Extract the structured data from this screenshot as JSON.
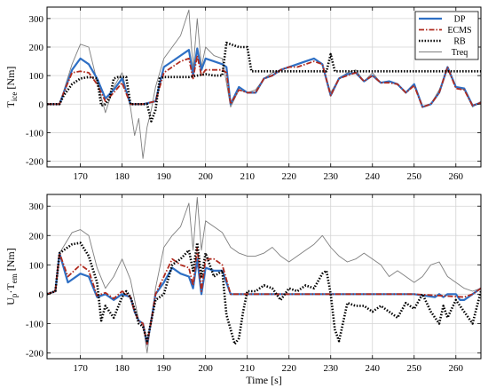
{
  "chart_data": [
    {
      "type": "line",
      "ylabel_main": "T",
      "ylabel_sub": "ice",
      "ylabel_unit": " [Nm]",
      "xlabel": "",
      "xlim": [
        162,
        266
      ],
      "ylim": [
        -220,
        340
      ],
      "xticks": [
        170,
        180,
        190,
        200,
        210,
        220,
        230,
        240,
        250,
        260
      ],
      "yticks": [
        -200,
        -100,
        0,
        100,
        200,
        300
      ],
      "grid": true,
      "legend": "top-right",
      "series": [
        {
          "name": "Treq",
          "color": "#7f7f7f",
          "x": [
            162,
            165,
            168,
            170,
            172,
            174,
            176,
            178,
            180,
            182,
            183,
            184,
            185,
            186,
            187,
            188,
            189,
            190,
            192,
            194,
            196,
            197,
            198,
            199,
            200,
            202,
            204,
            206,
            208,
            210,
            212,
            214,
            216,
            218,
            220,
            222,
            224,
            226,
            228,
            230,
            232,
            234,
            236,
            238,
            240,
            242,
            244,
            246,
            248,
            250,
            252,
            254,
            256,
            258,
            260,
            262,
            264,
            266
          ],
          "y": [
            0,
            0,
            140,
            210,
            200,
            80,
            -30,
            60,
            110,
            -10,
            -110,
            -50,
            -190,
            -80,
            -20,
            60,
            110,
            160,
            200,
            240,
            330,
            120,
            300,
            130,
            200,
            170,
            160,
            -10,
            50,
            40,
            50,
            90,
            110,
            120,
            130,
            140,
            150,
            160,
            140,
            40,
            90,
            110,
            120,
            80,
            110,
            75,
            80,
            70,
            40,
            70,
            -10,
            0,
            50,
            120,
            60,
            50,
            -10,
            10
          ]
        },
        {
          "name": "DP",
          "color": "#2e6fc4",
          "x": [
            162,
            165,
            166,
            168,
            170,
            172,
            174,
            176,
            178,
            180,
            182,
            185,
            188,
            190,
            192,
            194,
            196,
            197,
            198,
            199,
            200,
            202,
            204,
            205,
            206,
            208,
            210,
            212,
            214,
            216,
            218,
            220,
            222,
            224,
            226,
            228,
            230,
            232,
            234,
            236,
            238,
            240,
            242,
            244,
            246,
            248,
            250,
            252,
            254,
            256,
            258,
            260,
            262,
            264,
            266
          ],
          "y": [
            0,
            0,
            40,
            120,
            160,
            140,
            90,
            20,
            50,
            90,
            0,
            0,
            10,
            130,
            150,
            170,
            190,
            100,
            195,
            120,
            160,
            150,
            140,
            130,
            0,
            60,
            40,
            40,
            90,
            100,
            120,
            130,
            140,
            150,
            160,
            140,
            30,
            90,
            105,
            110,
            80,
            100,
            75,
            80,
            70,
            40,
            70,
            -10,
            0,
            40,
            130,
            60,
            55,
            -5,
            5
          ]
        },
        {
          "name": "ECMS",
          "color": "#b02a1e",
          "x": [
            162,
            165,
            166,
            168,
            170,
            172,
            174,
            176,
            178,
            180,
            182,
            185,
            188,
            190,
            192,
            194,
            196,
            197,
            198,
            199,
            200,
            202,
            204,
            205,
            206,
            208,
            210,
            212,
            214,
            216,
            218,
            220,
            222,
            224,
            226,
            228,
            230,
            232,
            234,
            236,
            238,
            240,
            242,
            244,
            246,
            248,
            250,
            252,
            254,
            256,
            258,
            260,
            262,
            264,
            266
          ],
          "y": [
            0,
            0,
            40,
            110,
            115,
            110,
            70,
            10,
            40,
            75,
            0,
            0,
            10,
            110,
            130,
            150,
            160,
            90,
            170,
            100,
            120,
            120,
            120,
            110,
            0,
            50,
            40,
            40,
            90,
            100,
            120,
            130,
            130,
            140,
            150,
            140,
            30,
            90,
            100,
            110,
            80,
            100,
            75,
            75,
            70,
            40,
            65,
            -10,
            0,
            40,
            130,
            55,
            50,
            -5,
            5
          ]
        },
        {
          "name": "RB",
          "color": "#000000",
          "x": [
            162,
            165,
            166,
            168,
            170,
            172,
            174,
            175,
            176,
            177,
            178,
            179,
            180,
            181,
            182,
            184,
            186,
            187,
            188,
            189,
            190,
            192,
            194,
            196,
            198,
            200,
            202,
            204,
            205,
            206,
            208,
            210,
            211,
            212,
            216,
            220,
            224,
            228,
            229,
            230,
            231,
            232,
            236,
            240,
            244,
            248,
            252,
            256,
            260,
            262,
            264,
            266
          ],
          "y": [
            0,
            0,
            30,
            70,
            90,
            95,
            90,
            -5,
            0,
            20,
            90,
            95,
            95,
            95,
            0,
            0,
            0,
            -60,
            -20,
            90,
            95,
            95,
            95,
            95,
            100,
            105,
            100,
            100,
            215,
            210,
            200,
            200,
            115,
            115,
            115,
            115,
            115,
            115,
            115,
            175,
            115,
            115,
            115,
            115,
            115,
            115,
            115,
            115,
            115,
            115,
            115,
            115
          ]
        }
      ]
    },
    {
      "type": "line",
      "ylabel_main": "U",
      "ylabel_sub": "p",
      "ylabel_mid": "·T",
      "ylabel_sub2": "em",
      "ylabel_unit": " [Nm]",
      "xlabel": "Time [s]",
      "xlim": [
        162,
        266
      ],
      "ylim": [
        -220,
        340
      ],
      "xticks": [
        170,
        180,
        190,
        200,
        210,
        220,
        230,
        240,
        250,
        260
      ],
      "yticks": [
        -200,
        -100,
        0,
        100,
        200,
        300
      ],
      "grid": true,
      "series": [
        {
          "name": "Treq",
          "color": "#7f7f7f",
          "x": [
            162,
            164,
            165,
            168,
            170,
            172,
            174,
            176,
            178,
            180,
            182,
            183,
            184,
            185,
            186,
            187,
            188,
            190,
            192,
            194,
            196,
            197,
            198,
            199,
            200,
            202,
            204,
            206,
            208,
            210,
            212,
            214,
            216,
            218,
            220,
            222,
            224,
            226,
            228,
            230,
            232,
            234,
            236,
            238,
            240,
            242,
            244,
            246,
            248,
            250,
            252,
            254,
            256,
            258,
            260,
            262,
            264,
            266
          ],
          "y": [
            0,
            10,
            140,
            210,
            220,
            200,
            90,
            20,
            60,
            120,
            50,
            -20,
            -90,
            -100,
            -200,
            -90,
            20,
            160,
            200,
            230,
            310,
            150,
            330,
            150,
            250,
            230,
            210,
            160,
            140,
            130,
            130,
            140,
            160,
            130,
            110,
            130,
            150,
            170,
            200,
            160,
            130,
            110,
            120,
            140,
            120,
            100,
            60,
            80,
            60,
            40,
            60,
            100,
            110,
            60,
            40,
            20,
            10,
            20
          ]
        },
        {
          "name": "DP",
          "color": "#2e6fc4",
          "x": [
            162,
            164,
            165,
            167,
            170,
            172,
            174,
            176,
            178,
            180,
            182,
            183,
            184,
            185,
            186,
            187,
            188,
            190,
            192,
            194,
            196,
            197,
            198,
            199,
            200,
            202,
            204,
            206,
            208,
            230,
            250,
            255,
            256,
            257,
            258,
            260,
            261,
            262,
            264,
            266
          ],
          "y": [
            0,
            10,
            140,
            40,
            70,
            60,
            -10,
            0,
            -20,
            0,
            -10,
            -60,
            -90,
            -100,
            -170,
            -90,
            0,
            40,
            90,
            70,
            60,
            20,
            120,
            0,
            90,
            80,
            80,
            0,
            0,
            0,
            0,
            -10,
            0,
            -10,
            0,
            0,
            -20,
            -20,
            0,
            20
          ]
        },
        {
          "name": "ECMS",
          "color": "#b02a1e",
          "x": [
            162,
            164,
            165,
            167,
            170,
            172,
            174,
            176,
            178,
            180,
            182,
            183,
            184,
            185,
            186,
            187,
            188,
            190,
            192,
            194,
            196,
            197,
            198,
            199,
            200,
            202,
            204,
            206,
            208,
            230,
            250,
            262,
            264,
            266
          ],
          "y": [
            0,
            10,
            140,
            60,
            100,
            80,
            -5,
            5,
            -15,
            10,
            -10,
            -60,
            -90,
            -100,
            -170,
            -90,
            0,
            60,
            120,
            100,
            90,
            30,
            160,
            10,
            120,
            120,
            100,
            0,
            0,
            0,
            0,
            -10,
            0,
            20
          ]
        },
        {
          "name": "RB",
          "color": "#000000",
          "x": [
            162,
            164,
            165,
            168,
            170,
            172,
            174,
            175,
            176,
            178,
            180,
            181,
            182,
            183,
            184,
            185,
            186,
            187,
            188,
            190,
            192,
            194,
            196,
            197,
            198,
            199,
            200,
            202,
            204,
            205,
            206,
            207,
            208,
            209,
            210,
            212,
            214,
            216,
            218,
            220,
            222,
            224,
            226,
            228,
            229,
            230,
            231,
            232,
            234,
            236,
            238,
            240,
            242,
            244,
            246,
            248,
            250,
            252,
            254,
            255,
            256,
            257,
            258,
            260,
            262,
            264,
            266
          ],
          "y": [
            0,
            10,
            140,
            170,
            175,
            130,
            40,
            -90,
            -40,
            -80,
            -10,
            10,
            -10,
            -50,
            -100,
            -110,
            -160,
            -90,
            -20,
            0,
            100,
            120,
            150,
            80,
            175,
            60,
            140,
            60,
            80,
            -70,
            -120,
            -170,
            -150,
            -60,
            10,
            10,
            30,
            20,
            -20,
            20,
            10,
            30,
            20,
            70,
            80,
            0,
            -120,
            -160,
            -30,
            -40,
            -40,
            -60,
            -40,
            -60,
            -80,
            -30,
            -50,
            0,
            -60,
            -80,
            -100,
            -40,
            -80,
            -20,
            -60,
            -100,
            10
          ]
        }
      ]
    }
  ]
}
